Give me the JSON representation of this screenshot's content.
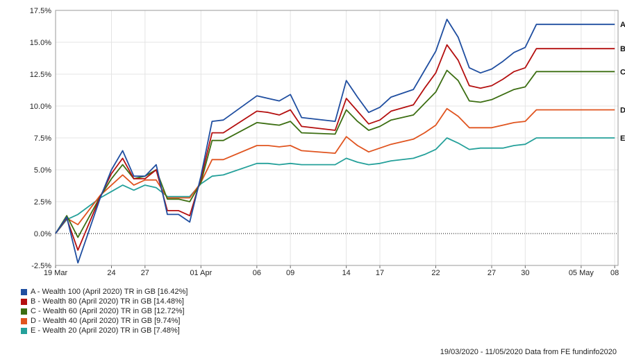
{
  "chart_data": {
    "type": "line",
    "title": "",
    "xlabel": "",
    "ylabel": "",
    "ylim": [
      -2.5,
      17.5
    ],
    "y_ticks": [
      "-2.5%",
      "0.0%",
      "2.5%",
      "5.0%",
      "7.5%",
      "10.0%",
      "12.5%",
      "15.0%",
      "17.5%"
    ],
    "x_ticks": [
      {
        "label": "19 Mar",
        "day": 0
      },
      {
        "label": "24",
        "day": 5
      },
      {
        "label": "27",
        "day": 8
      },
      {
        "label": "01 Apr",
        "day": 13
      },
      {
        "label": "06",
        "day": 18
      },
      {
        "label": "09",
        "day": 21
      },
      {
        "label": "14",
        "day": 26
      },
      {
        "label": "17",
        "day": 29
      },
      {
        "label": "22",
        "day": 34
      },
      {
        "label": "27",
        "day": 39
      },
      {
        "label": "30",
        "day": 42
      },
      {
        "label": "05 May",
        "day": 47
      },
      {
        "label": "08",
        "day": 50
      }
    ],
    "x_range": [
      0,
      51
    ],
    "x": [
      0,
      1,
      2,
      4,
      5,
      6,
      7,
      8,
      9,
      10,
      11,
      12,
      13,
      14,
      15,
      18,
      19,
      20,
      21,
      22,
      25,
      26,
      27,
      28,
      29,
      30,
      32,
      33,
      34,
      35,
      36,
      37,
      38,
      39,
      40,
      41,
      42,
      43,
      44,
      45,
      46,
      47,
      48,
      49,
      50,
      51
    ],
    "grid": true,
    "legend_position": "bottom-left",
    "series": [
      {
        "name": "A - Wealth 100 (April 2020) TR in GB [16.42%]",
        "short": "A",
        "color": "#1f4ea0",
        "values": [
          0,
          1.3,
          -2.3,
          2.8,
          5.0,
          6.5,
          4.5,
          4.5,
          5.4,
          1.5,
          1.5,
          0.9,
          4.5,
          8.8,
          8.9,
          10.8,
          10.6,
          10.4,
          10.9,
          9.1,
          8.8,
          12.0,
          10.7,
          9.5,
          9.9,
          10.7,
          11.3,
          12.8,
          14.3,
          16.8,
          15.4,
          13.0,
          12.6,
          12.9,
          13.5,
          14.2,
          14.6,
          16.4,
          16.4,
          16.4,
          16.4,
          16.4,
          16.4,
          16.4,
          16.4,
          16.4
        ]
      },
      {
        "name": "B - Wealth 80 (April 2020) TR in GB [14.48%]",
        "short": "B",
        "color": "#b40f0f",
        "values": [
          0,
          1.2,
          -1.3,
          2.9,
          4.7,
          5.9,
          4.3,
          4.3,
          5.0,
          1.8,
          1.8,
          1.4,
          4.3,
          7.9,
          7.9,
          9.6,
          9.5,
          9.3,
          9.7,
          8.4,
          8.1,
          10.6,
          9.6,
          8.6,
          8.9,
          9.6,
          10.1,
          11.4,
          12.6,
          14.8,
          13.6,
          11.6,
          11.4,
          11.6,
          12.1,
          12.7,
          13.0,
          14.5,
          14.5,
          14.5,
          14.5,
          14.5,
          14.5,
          14.5,
          14.5,
          14.5
        ]
      },
      {
        "name": "C - Wealth 60 (April 2020) TR in GB [12.72%]",
        "short": "C",
        "color": "#3c6e12",
        "values": [
          0,
          1.4,
          -0.3,
          2.9,
          4.3,
          5.4,
          4.3,
          4.5,
          5.0,
          2.7,
          2.7,
          2.5,
          4.0,
          7.3,
          7.3,
          8.7,
          8.6,
          8.5,
          8.8,
          7.9,
          7.8,
          9.7,
          8.8,
          8.1,
          8.4,
          8.9,
          9.3,
          10.2,
          11.1,
          12.8,
          12.0,
          10.4,
          10.3,
          10.5,
          10.9,
          11.3,
          11.5,
          12.7,
          12.7,
          12.7,
          12.7,
          12.7,
          12.7,
          12.7,
          12.7,
          12.7
        ]
      },
      {
        "name": "D - Wealth 40 (April 2020) TR in GB [9.74%]",
        "short": "D",
        "color": "#e0541f",
        "values": [
          0,
          1.2,
          0.7,
          3.0,
          3.8,
          4.6,
          3.8,
          4.2,
          4.2,
          2.8,
          2.8,
          2.8,
          4.0,
          5.8,
          5.8,
          6.9,
          6.9,
          6.8,
          6.9,
          6.5,
          6.3,
          7.6,
          6.9,
          6.4,
          6.7,
          7.0,
          7.4,
          7.9,
          8.5,
          9.8,
          9.2,
          8.3,
          8.3,
          8.3,
          8.5,
          8.7,
          8.8,
          9.7,
          9.7,
          9.7,
          9.7,
          9.7,
          9.7,
          9.7,
          9.7,
          9.7
        ]
      },
      {
        "name": "E - Wealth 20 (April 2020) TR in GB [7.48%]",
        "short": "E",
        "color": "#24a09a",
        "values": [
          0,
          1.1,
          1.5,
          2.8,
          3.3,
          3.8,
          3.4,
          3.8,
          3.6,
          2.9,
          2.9,
          2.9,
          3.9,
          4.5,
          4.6,
          5.5,
          5.5,
          5.4,
          5.5,
          5.4,
          5.4,
          5.9,
          5.6,
          5.4,
          5.5,
          5.7,
          5.9,
          6.2,
          6.6,
          7.5,
          7.1,
          6.6,
          6.7,
          6.7,
          6.7,
          6.9,
          7.0,
          7.5,
          7.5,
          7.5,
          7.5,
          7.5,
          7.5,
          7.5,
          7.5,
          7.5
        ]
      }
    ]
  },
  "footer": "19/03/2020 - 11/05/2020 Data from FE fundinfo2020"
}
